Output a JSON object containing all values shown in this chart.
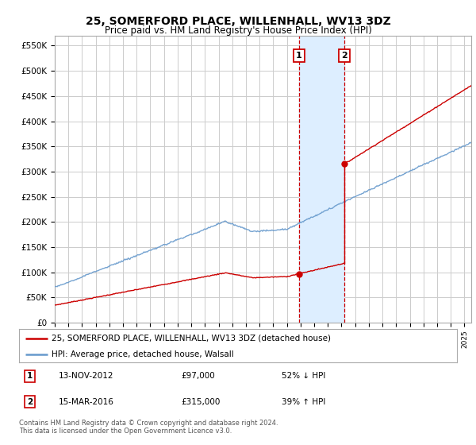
{
  "title": "25, SOMERFORD PLACE, WILLENHALL, WV13 3DZ",
  "subtitle": "Price paid vs. HM Land Registry's House Price Index (HPI)",
  "yticks": [
    0,
    50000,
    100000,
    150000,
    200000,
    250000,
    300000,
    350000,
    400000,
    450000,
    500000,
    550000
  ],
  "ylim": [
    0,
    570000
  ],
  "xlim_start": 1995,
  "xlim_end": 2025.5,
  "transaction1": {
    "date_num": 2012.87,
    "price": 97000,
    "label": "1",
    "date_str": "13-NOV-2012",
    "pct": "52% ↓ HPI"
  },
  "transaction2": {
    "date_num": 2016.21,
    "price": 315000,
    "label": "2",
    "date_str": "15-MAR-2016",
    "pct": "39% ↑ HPI"
  },
  "legend_line1": "25, SOMERFORD PLACE, WILLENHALL, WV13 3DZ (detached house)",
  "legend_line2": "HPI: Average price, detached house, Walsall",
  "footer": "Contains HM Land Registry data © Crown copyright and database right 2024.\nThis data is licensed under the Open Government Licence v3.0.",
  "line_color_red": "#cc0000",
  "line_color_blue": "#6699cc",
  "background_color": "#ffffff",
  "grid_color": "#cccccc",
  "shade_color": "#ddeeff"
}
